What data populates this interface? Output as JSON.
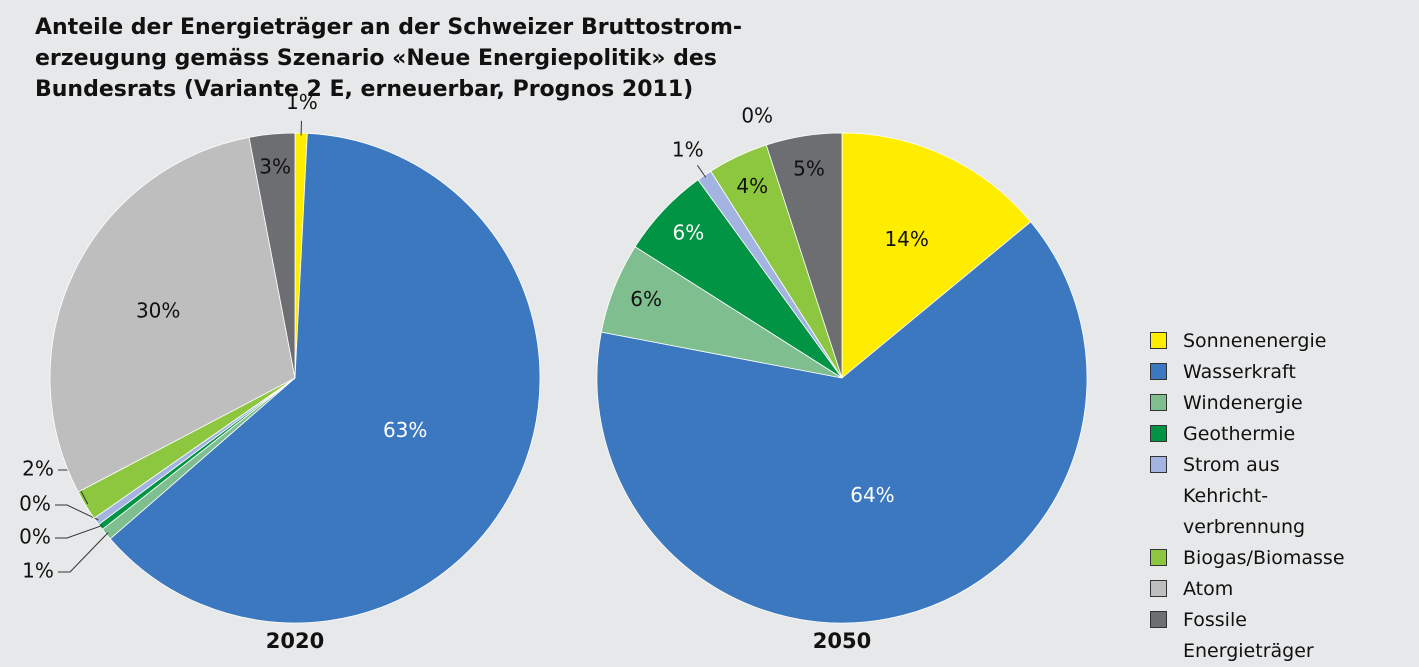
{
  "chart_data": {
    "type": "pie",
    "title": "Anteile der Energieträger an der Schweizer Bruttostrom-erzeugung gemäss Szenario «Neue Energiepolitik» des Bundesrats (Variante 2 E, erneuerbar, Prognos 2011)",
    "categories": [
      "Sonnenenergie",
      "Wasserkraft",
      "Windenergie",
      "Geothermie",
      "Strom aus Kehricht-verbrennung",
      "Biogas/Biomasse",
      "Atom",
      "Fossile Energieträger"
    ],
    "colors": [
      "#ffed00",
      "#3b78bf",
      "#7fbf8f",
      "#009444",
      "#a4b4e0",
      "#8dc63f",
      "#bebebe",
      "#6d6e71"
    ],
    "series": [
      {
        "name": "2020",
        "values": [
          0.8,
          62.8,
          0.8,
          0.4,
          0.5,
          2,
          29.7,
          3
        ],
        "value_labels": [
          "1%",
          "63%",
          "1%",
          "0%",
          "0%",
          "2%",
          "30%",
          "3%"
        ]
      },
      {
        "name": "2050",
        "values": [
          14,
          64,
          6,
          6,
          1,
          4,
          0,
          5
        ],
        "value_labels": [
          "14%",
          "64%",
          "6%",
          "6%",
          "1%",
          "4%",
          "0%",
          "5%"
        ]
      }
    ],
    "legend": "right"
  }
}
